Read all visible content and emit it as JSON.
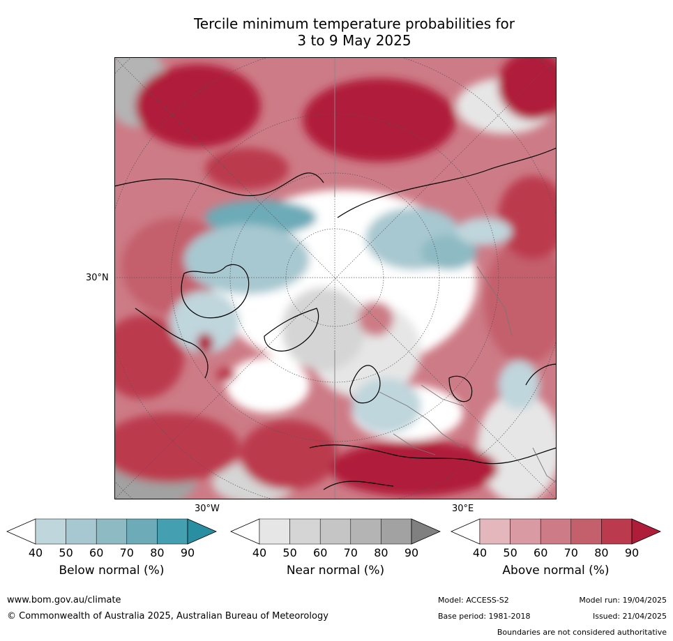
{
  "title": {
    "line1": "Tercile minimum temperature probabilities for",
    "line2": "3 to 9 May 2025"
  },
  "map_labels": {
    "lat": "30°N",
    "lon_west": "30°W",
    "lon_east": "30°E"
  },
  "colorbars": [
    {
      "title": "Below normal (%)",
      "ticks": [
        "40",
        "50",
        "60",
        "70",
        "80",
        "90"
      ],
      "colors": [
        "#ffffff",
        "#bfd6dc",
        "#a7c8d0",
        "#8dbac3",
        "#6cabb7",
        "#44a0b0",
        "#2a8ea3"
      ]
    },
    {
      "title": "Near normal (%)",
      "ticks": [
        "40",
        "50",
        "60",
        "70",
        "80",
        "90"
      ],
      "colors": [
        "#ffffff",
        "#e6e6e6",
        "#d5d5d5",
        "#c5c5c5",
        "#b4b4b4",
        "#a2a2a2",
        "#808080"
      ]
    },
    {
      "title": "Above normal (%)",
      "ticks": [
        "40",
        "50",
        "60",
        "70",
        "80",
        "90"
      ],
      "colors": [
        "#ffffff",
        "#e4b7bd",
        "#d99aa3",
        "#cd7b86",
        "#c45f6c",
        "#bb3a4d",
        "#b01d3a"
      ]
    }
  ],
  "footer": {
    "url": "www.bom.gov.au/climate",
    "copyright": "© Commonwealth of Australia 2025, Australian Bureau of Meteorology",
    "model": "Model: ACCESS-S2",
    "base_period": "Base period: 1981-2018",
    "model_run": "Model run: 19/04/2025",
    "issued": "Issued: 21/04/2025",
    "disclaimer": "Boundaries are not considered authoritative"
  }
}
